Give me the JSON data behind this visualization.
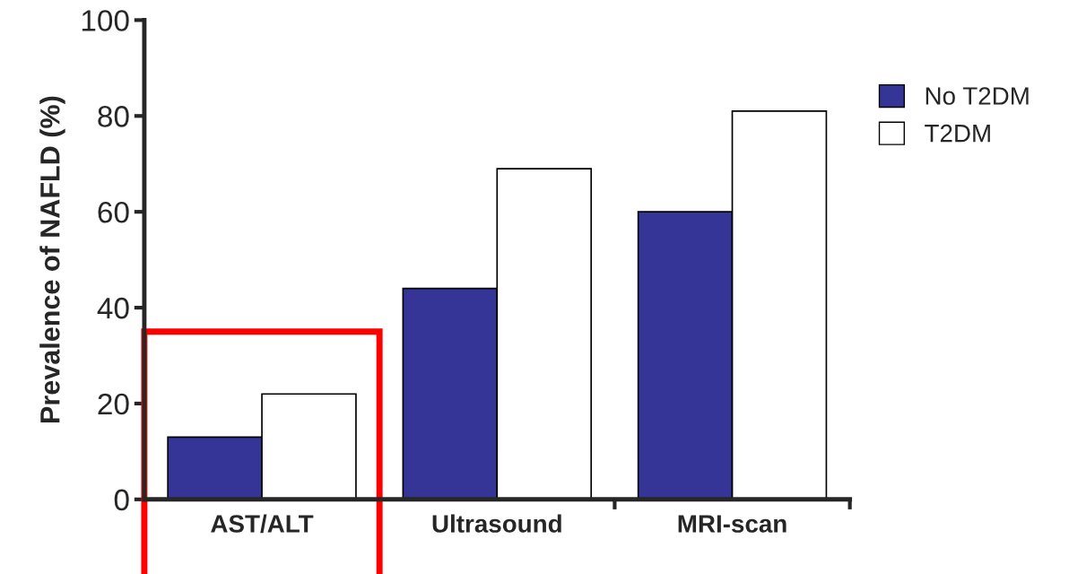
{
  "chart_data": {
    "type": "bar",
    "ylabel": "Prevalence of NAFLD (%)",
    "categories": [
      "AST/ALT",
      "Ultrasound",
      "MRI-scan"
    ],
    "series": [
      {
        "name": "No T2DM",
        "color": "#353598",
        "values": [
          13,
          44,
          60
        ]
      },
      {
        "name": "T2DM",
        "color": "#ffffff",
        "values": [
          22,
          69,
          81
        ]
      }
    ],
    "ylim": [
      0,
      100
    ],
    "yticks": [
      0,
      20,
      40,
      60,
      80,
      100
    ],
    "grid": false,
    "legend": "right"
  }
}
